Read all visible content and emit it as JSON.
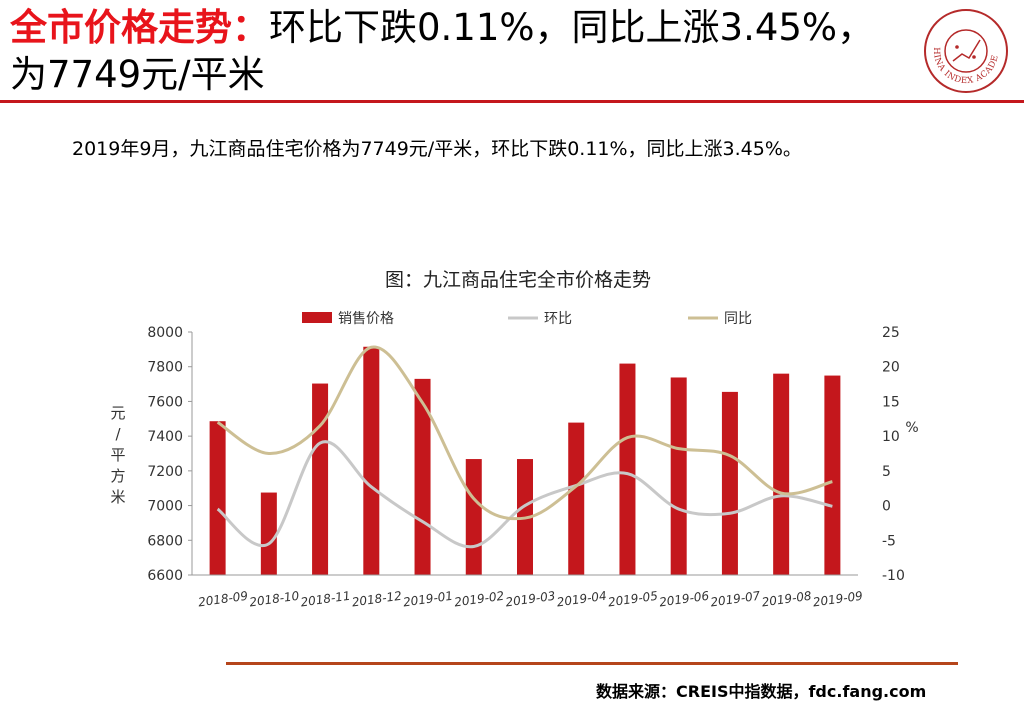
{
  "header": {
    "title_highlight": "全市价格走势：",
    "title_rest": "环比下跌0.11%，同比上涨3.45%，为7749元/平米",
    "logo_text": "CHINA INDEX ACADEMY"
  },
  "summary": "2019年9月，九江商品住宅价格为7749元/平米，环比下跌0.11%，同比上涨3.45%。",
  "footer": {
    "source": "数据来源：CREIS中指数据，fdc.fang.com"
  },
  "colors": {
    "accent": "#e8141b",
    "bar": "#c4171c",
    "mom_line": "#c8c8c8",
    "yoy_line": "#cdbf94"
  },
  "chart_data": {
    "type": "bar",
    "title": "图：九江商品住宅全市价格走势",
    "categories": [
      "2018-09",
      "2018-10",
      "2018-11",
      "2018-12",
      "2019-01",
      "2019-02",
      "2019-03",
      "2019-04",
      "2019-05",
      "2019-06",
      "2019-07",
      "2019-08",
      "2019-09"
    ],
    "series": [
      {
        "name": "销售价格",
        "type": "bar",
        "axis": "left",
        "values": [
          7486,
          7075,
          7703,
          7915,
          7730,
          7268,
          7268,
          7478,
          7818,
          7738,
          7655,
          7760,
          7749
        ]
      },
      {
        "name": "环比",
        "type": "line",
        "axis": "right",
        "values": [
          -0.5,
          -5.5,
          9.0,
          2.7,
          -2.3,
          -5.9,
          0.0,
          2.9,
          4.6,
          -0.5,
          -1.1,
          1.4,
          -0.11
        ]
      },
      {
        "name": "同比",
        "type": "line",
        "axis": "right",
        "values": [
          12.0,
          7.5,
          11.5,
          22.8,
          14.8,
          1.0,
          -1.8,
          2.8,
          9.8,
          8.2,
          7.2,
          1.8,
          3.45
        ]
      }
    ],
    "y_left": {
      "label": "元/平方米",
      "min": 6600,
      "max": 8000,
      "ticks": [
        "6600",
        "6800",
        "7000",
        "7200",
        "7400",
        "7600",
        "7800",
        "8000"
      ]
    },
    "y_right": {
      "label": "%",
      "min": -10,
      "max": 25,
      "ticks": [
        "-10",
        "-5",
        "0",
        "5",
        "10",
        "15",
        "20",
        "25"
      ]
    },
    "legend_position": "top",
    "grid": false
  }
}
